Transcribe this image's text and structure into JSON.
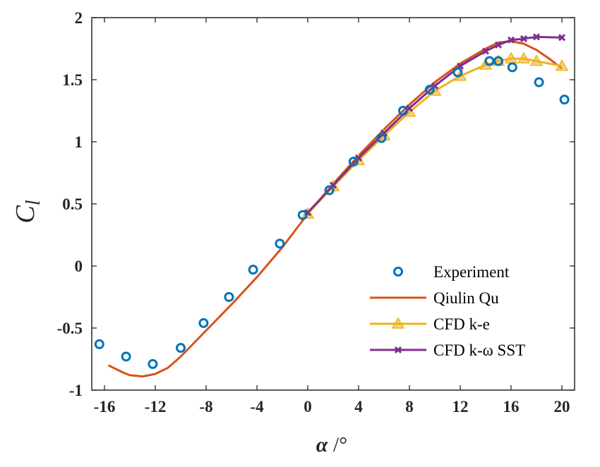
{
  "chart_data": {
    "type": "line",
    "xlabel": {
      "symbol": "α",
      "unit": " /°"
    },
    "ylabel": {
      "main": "C",
      "sub": "l"
    },
    "xlim": [
      -17,
      21
    ],
    "ylim": [
      -1,
      2
    ],
    "xticks": [
      -16,
      -12,
      -8,
      -4,
      0,
      4,
      8,
      12,
      16,
      20
    ],
    "yticks": [
      -1,
      -0.5,
      0,
      0.5,
      1,
      1.5,
      2
    ],
    "xtick_labels": [
      "-16",
      "-12",
      "-8",
      "-4",
      "0",
      "4",
      "8",
      "12",
      "16",
      "20"
    ],
    "ytick_labels": [
      "-1",
      "-0.5",
      "0",
      "0.5",
      "1",
      "1.5",
      "2"
    ],
    "grid": false,
    "legend_position": "bottom-right",
    "series": [
      {
        "name": "Experiment",
        "style": "markers",
        "marker": "circle",
        "color": "#0072BD",
        "x": [
          -16.4,
          -14.3,
          -12.2,
          -10,
          -8.2,
          -6.2,
          -4.3,
          -2.2,
          -0.4,
          1.7,
          3.6,
          5.8,
          7.5,
          9.6,
          11.8,
          14.3,
          15,
          16.1,
          18.2,
          20.2
        ],
        "y": [
          -0.63,
          -0.73,
          -0.79,
          -0.66,
          -0.46,
          -0.25,
          -0.03,
          0.18,
          0.41,
          0.61,
          0.84,
          1.03,
          1.25,
          1.42,
          1.56,
          1.65,
          1.65,
          1.6,
          1.48,
          1.34
        ]
      },
      {
        "name": "Qiulin Qu",
        "style": "line",
        "marker": "none",
        "color": "#D95319",
        "x": [
          -15.7,
          -14.5,
          -14,
          -13,
          -12,
          -11,
          -10,
          -8,
          -6,
          -4,
          -2,
          0,
          2,
          4,
          6,
          8,
          10,
          12,
          14,
          15,
          16,
          17,
          18,
          19,
          20
        ],
        "y": [
          -0.8,
          -0.86,
          -0.88,
          -0.89,
          -0.87,
          -0.82,
          -0.73,
          -0.52,
          -0.31,
          -0.09,
          0.15,
          0.42,
          0.66,
          0.89,
          1.1,
          1.3,
          1.48,
          1.63,
          1.75,
          1.8,
          1.81,
          1.79,
          1.74,
          1.67,
          1.59
        ]
      },
      {
        "name": "CFD k-e",
        "style": "line+markers",
        "marker": "triangle",
        "color": "#EDB120",
        "x": [
          0,
          2,
          4,
          6,
          8,
          10,
          12,
          14,
          15,
          16,
          17,
          18,
          20
        ],
        "y": [
          0.42,
          0.64,
          0.85,
          1.05,
          1.24,
          1.41,
          1.53,
          1.62,
          1.65,
          1.67,
          1.67,
          1.65,
          1.61
        ]
      },
      {
        "name": "CFD k-ω SST",
        "style": "line+markers",
        "marker": "x",
        "color": "#7E2F8E",
        "x": [
          0,
          2,
          4,
          6,
          8,
          10,
          12,
          14,
          15,
          16,
          17,
          18,
          20
        ],
        "y": [
          0.43,
          0.65,
          0.87,
          1.07,
          1.27,
          1.45,
          1.61,
          1.73,
          1.78,
          1.82,
          1.83,
          1.845,
          1.84
        ]
      }
    ]
  }
}
